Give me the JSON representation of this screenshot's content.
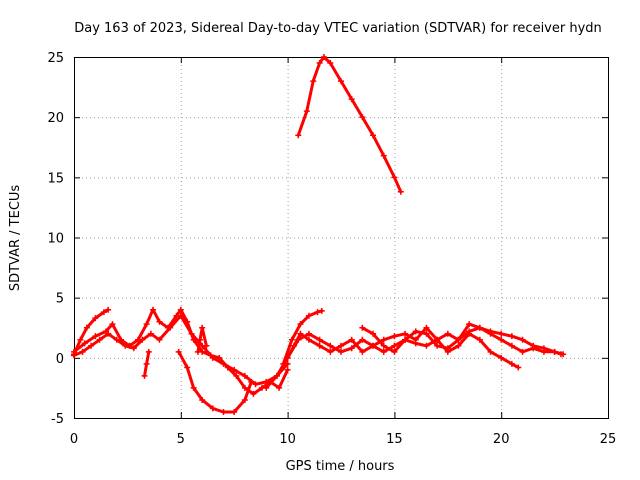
{
  "chart_data": {
    "type": "scatter",
    "title": "Day 163 of 2023, Sidereal Day-to-day VTEC variation (SDTVAR) for receiver hydn",
    "xlabel": "GPS time / hours",
    "ylabel": "SDTVAR / TECUs",
    "xlim": [
      0,
      25
    ],
    "ylim": [
      -5,
      25
    ],
    "xticks": [
      0,
      5,
      10,
      15,
      20,
      25
    ],
    "yticks": [
      -5,
      0,
      5,
      10,
      15,
      20,
      25
    ],
    "xtick_labels": [
      "0",
      "5",
      "10",
      "15",
      "20",
      "25"
    ],
    "ytick_labels": [
      "-5",
      "0",
      "5",
      "10",
      "15",
      "20",
      "25"
    ],
    "grid": true,
    "marker": "plus",
    "color": "#ff0000",
    "series": [
      {
        "name": "trace-1",
        "x": [
          0.0,
          0.3,
          0.6,
          1.0,
          1.4,
          1.6
        ],
        "y": [
          0.3,
          1.5,
          2.5,
          3.3,
          3.8,
          4.0
        ]
      },
      {
        "name": "trace-2",
        "x": [
          0.0,
          0.5,
          1.0,
          1.5,
          1.8,
          2.2,
          2.6,
          3.0,
          3.4,
          3.7,
          4.0,
          4.4,
          4.8,
          5.0,
          5.3,
          5.6,
          6.0,
          6.4,
          6.8,
          7.2,
          7.6,
          8.0,
          8.4,
          8.8,
          9.2,
          9.6,
          10.0
        ],
        "y": [
          0.5,
          1.2,
          1.8,
          2.2,
          2.8,
          1.5,
          1.0,
          1.5,
          2.8,
          4.0,
          3.0,
          2.5,
          3.5,
          4.0,
          3.0,
          1.5,
          0.5,
          0.2,
          0.0,
          -0.8,
          -1.5,
          -2.5,
          -3.0,
          -2.5,
          -2.0,
          -2.5,
          -1.0
        ]
      },
      {
        "name": "trace-3",
        "x": [
          0.0,
          0.4,
          0.8,
          1.2,
          1.6,
          2.0,
          2.4,
          2.8,
          3.2,
          3.6,
          4.0,
          4.5,
          5.0,
          5.5,
          6.0,
          6.5,
          7.0,
          7.5,
          8.0,
          8.5,
          9.0,
          9.5,
          10.0
        ],
        "y": [
          0.2,
          0.5,
          1.0,
          1.5,
          2.0,
          1.5,
          1.0,
          0.8,
          1.5,
          2.0,
          1.5,
          2.5,
          3.5,
          2.0,
          1.0,
          0.0,
          -0.5,
          -1.0,
          -1.5,
          -2.2,
          -2.0,
          -1.5,
          -0.5
        ]
      },
      {
        "name": "trace-4",
        "x": [
          3.3,
          3.4,
          3.5
        ],
        "y": [
          -1.5,
          -0.5,
          0.5
        ]
      },
      {
        "name": "trace-5",
        "x": [
          4.9,
          5.3,
          5.6,
          6.0,
          6.5,
          7.0,
          7.5,
          8.0,
          8.3
        ],
        "y": [
          0.5,
          -0.8,
          -2.5,
          -3.5,
          -4.2,
          -4.5,
          -4.5,
          -3.5,
          -2.0
        ]
      },
      {
        "name": "trace-6",
        "x": [
          5.8,
          5.9,
          6.0,
          6.2
        ],
        "y": [
          0.5,
          1.5,
          2.5,
          1.0
        ]
      },
      {
        "name": "trace-7",
        "x": [
          10.5,
          10.9,
          11.2,
          11.5,
          11.7,
          12.0,
          12.5,
          13.0,
          13.5,
          14.0,
          14.5,
          15.0,
          15.3
        ],
        "y": [
          18.5,
          20.5,
          23.0,
          24.5,
          25.0,
          24.5,
          23.0,
          21.5,
          20.0,
          18.5,
          16.8,
          15.0,
          13.8
        ]
      },
      {
        "name": "trace-8",
        "x": [
          9.0,
          9.5,
          10.0,
          10.5,
          11.0,
          11.5,
          12.0,
          12.5,
          13.0,
          13.5,
          14.0,
          14.5,
          15.0,
          15.5,
          16.0,
          16.5,
          17.0,
          17.5,
          18.0,
          18.5,
          19.0,
          19.5,
          20.0,
          20.5,
          21.0,
          21.5,
          22.0,
          22.5,
          22.9
        ],
        "y": [
          -2.5,
          -1.5,
          0.0,
          1.5,
          2.0,
          1.5,
          1.0,
          0.5,
          0.8,
          1.5,
          1.0,
          0.5,
          1.0,
          1.5,
          1.2,
          1.0,
          1.5,
          2.0,
          1.5,
          2.2,
          2.5,
          2.0,
          1.5,
          1.0,
          0.5,
          0.8,
          0.5,
          0.5,
          0.3
        ]
      },
      {
        "name": "trace-9",
        "x": [
          10.0,
          10.3,
          10.6,
          11.0,
          11.5,
          12.0,
          12.5,
          13.0,
          13.5,
          14.0,
          14.5,
          15.0,
          15.5,
          16.0,
          16.5,
          17.0,
          17.5,
          18.0,
          18.5,
          19.0,
          19.5,
          20.0,
          20.5,
          20.8
        ],
        "y": [
          0.0,
          1.0,
          2.0,
          1.5,
          1.0,
          0.5,
          1.0,
          1.5,
          0.5,
          1.0,
          1.5,
          1.8,
          2.0,
          1.5,
          2.5,
          1.5,
          0.5,
          1.0,
          2.0,
          1.5,
          0.5,
          0.0,
          -0.5,
          -0.8
        ]
      },
      {
        "name": "trace-10",
        "x": [
          9.8,
          10.2,
          10.6,
          11.0,
          11.4,
          11.6
        ],
        "y": [
          -0.5,
          1.5,
          2.8,
          3.5,
          3.8,
          3.9
        ]
      },
      {
        "name": "trace-11",
        "x": [
          13.5,
          14.0,
          14.5,
          15.0,
          15.5,
          16.0,
          16.5,
          17.0,
          17.5,
          18.0,
          18.5,
          19.0,
          19.5,
          20.0,
          20.5,
          21.0,
          21.5,
          22.0,
          22.5,
          22.8
        ],
        "y": [
          2.5,
          2.0,
          1.0,
          0.5,
          1.5,
          2.2,
          2.0,
          1.0,
          0.8,
          1.5,
          2.8,
          2.5,
          2.2,
          2.0,
          1.8,
          1.5,
          1.0,
          0.8,
          0.5,
          0.3
        ]
      }
    ]
  }
}
